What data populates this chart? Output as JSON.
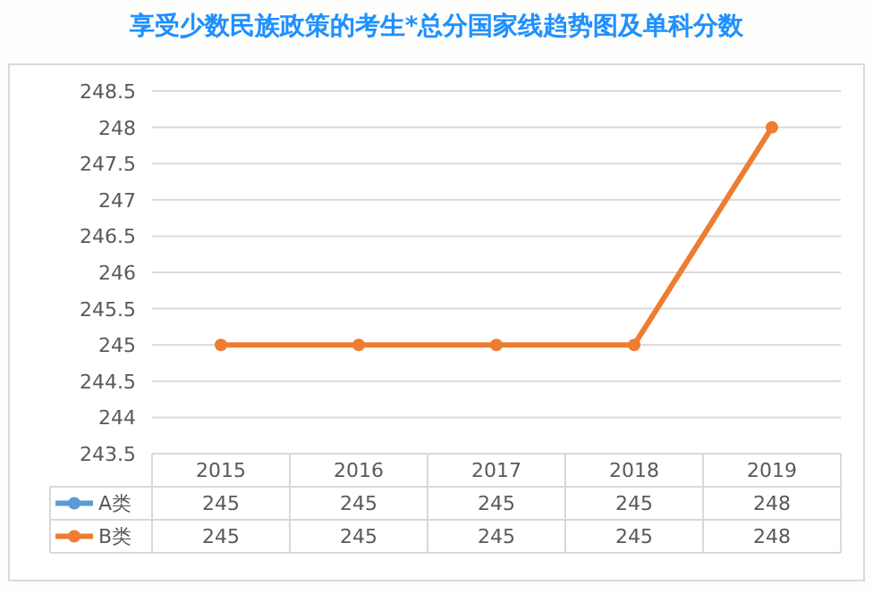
{
  "chart_data": {
    "type": "line",
    "title": "享受少数民族政策的考生*总分国家线趋势图及单科分数",
    "categories": [
      "2015",
      "2016",
      "2017",
      "2018",
      "2019"
    ],
    "series": [
      {
        "name": "A类",
        "color": "#5b9bd5",
        "values": [
          null,
          null,
          null,
          null,
          null
        ],
        "value_labels": [
          "245",
          "245",
          "245",
          "245",
          "248"
        ]
      },
      {
        "name": "B类",
        "color": "#ed7d31",
        "values": [
          245,
          245,
          245,
          245,
          248
        ],
        "value_labels": [
          "245",
          "245",
          "245",
          "245",
          "248"
        ]
      }
    ],
    "ylim": [
      243.5,
      248.5
    ],
    "yticks": [
      243.5,
      244,
      244.5,
      245,
      245.5,
      246,
      246.5,
      247,
      247.5,
      248,
      248.5
    ],
    "grid": "y",
    "legend": "bottom",
    "marker": "circle",
    "line_style": "solid"
  }
}
